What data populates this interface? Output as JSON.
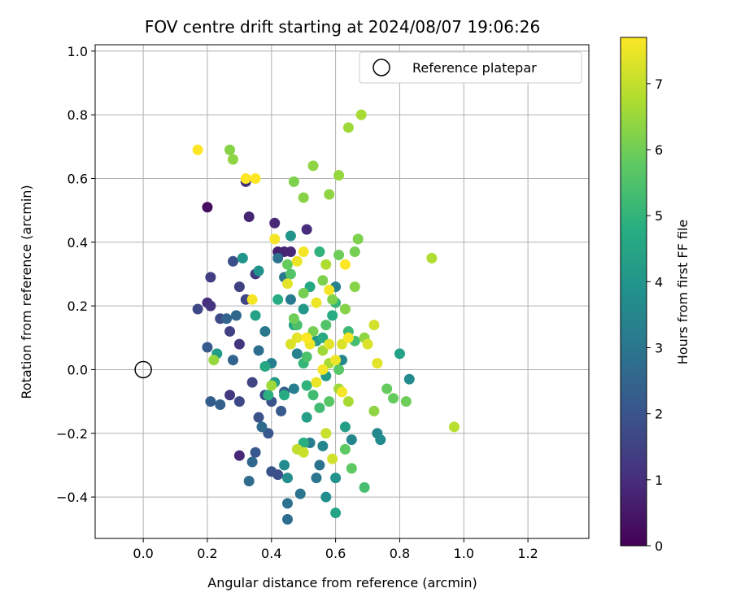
{
  "chart_data": {
    "type": "scatter",
    "title": "FOV centre drift starting at 2024/08/07 19:06:26",
    "xlabel": "Angular distance from reference (arcmin)",
    "ylabel": "Rotation from reference (arcmin)",
    "xlim": [
      -0.15,
      1.39
    ],
    "ylim": [
      -0.53,
      1.02
    ],
    "xticks": [
      "0.0",
      "0.2",
      "0.4",
      "0.6",
      "0.8",
      "1.0",
      "1.2"
    ],
    "xtick_values": [
      0.0,
      0.2,
      0.4,
      0.6,
      0.8,
      1.0,
      1.2
    ],
    "yticks": [
      "−0.4",
      "−0.2",
      "0.0",
      "0.2",
      "0.4",
      "0.6",
      "0.8",
      "1.0"
    ],
    "ytick_values": [
      -0.4,
      -0.2,
      0.0,
      0.2,
      0.4,
      0.6,
      0.8,
      1.0
    ],
    "grid": true,
    "legend": {
      "label": "Reference platepar",
      "placement": "top-right"
    },
    "reference_point": {
      "x": 0.0,
      "y": 0.0
    },
    "colorbar": {
      "label": "Hours from first FF file",
      "colormap": "viridis",
      "range": [
        0,
        7.7
      ],
      "ticks": [
        "0",
        "1",
        "2",
        "3",
        "4",
        "5",
        "6",
        "7"
      ],
      "tick_values": [
        0,
        1,
        2,
        3,
        4,
        5,
        6,
        7
      ]
    },
    "points": [
      {
        "x": 0.2,
        "y": 0.51,
        "h": 0.3
      },
      {
        "x": 0.33,
        "y": 0.48,
        "h": 0.8
      },
      {
        "x": 0.41,
        "y": 0.46,
        "h": 0.9
      },
      {
        "x": 0.51,
        "y": 0.44,
        "h": 1.0
      },
      {
        "x": 0.32,
        "y": 0.59,
        "h": 1.1
      },
      {
        "x": 0.46,
        "y": 0.37,
        "h": 0.9
      },
      {
        "x": 0.42,
        "y": 0.37,
        "h": 0.7
      },
      {
        "x": 0.44,
        "y": 0.37,
        "h": 0.8
      },
      {
        "x": 0.3,
        "y": -0.27,
        "h": 0.9
      },
      {
        "x": 0.2,
        "y": 0.21,
        "h": 1.0
      },
      {
        "x": 0.21,
        "y": 0.29,
        "h": 1.4
      },
      {
        "x": 0.21,
        "y": 0.2,
        "h": 1.2
      },
      {
        "x": 0.35,
        "y": 0.3,
        "h": 1.3
      },
      {
        "x": 0.3,
        "y": 0.08,
        "h": 1.2
      },
      {
        "x": 0.27,
        "y": -0.08,
        "h": 1.3
      },
      {
        "x": 0.27,
        "y": 0.12,
        "h": 1.5
      },
      {
        "x": 0.3,
        "y": 0.26,
        "h": 1.5
      },
      {
        "x": 0.32,
        "y": 0.22,
        "h": 1.6
      },
      {
        "x": 0.17,
        "y": 0.19,
        "h": 1.7
      },
      {
        "x": 0.24,
        "y": 0.16,
        "h": 1.8
      },
      {
        "x": 0.3,
        "y": -0.1,
        "h": 1.7
      },
      {
        "x": 0.34,
        "y": -0.04,
        "h": 1.6
      },
      {
        "x": 0.38,
        "y": -0.08,
        "h": 1.8
      },
      {
        "x": 0.28,
        "y": 0.34,
        "h": 1.9
      },
      {
        "x": 0.36,
        "y": -0.15,
        "h": 2.0
      },
      {
        "x": 0.4,
        "y": -0.1,
        "h": 2.0
      },
      {
        "x": 0.35,
        "y": -0.26,
        "h": 2.1
      },
      {
        "x": 0.39,
        "y": -0.2,
        "h": 2.1
      },
      {
        "x": 0.4,
        "y": -0.32,
        "h": 2.0
      },
      {
        "x": 0.42,
        "y": -0.33,
        "h": 1.9
      },
      {
        "x": 0.43,
        "y": -0.13,
        "h": 2.2
      },
      {
        "x": 0.44,
        "y": -0.07,
        "h": 2.3
      },
      {
        "x": 0.2,
        "y": 0.07,
        "h": 2.2
      },
      {
        "x": 0.21,
        "y": -0.1,
        "h": 2.3
      },
      {
        "x": 0.24,
        "y": -0.11,
        "h": 2.4
      },
      {
        "x": 0.26,
        "y": 0.16,
        "h": 2.5
      },
      {
        "x": 0.28,
        "y": 0.03,
        "h": 2.5
      },
      {
        "x": 0.29,
        "y": 0.17,
        "h": 2.6
      },
      {
        "x": 0.33,
        "y": -0.35,
        "h": 2.7
      },
      {
        "x": 0.34,
        "y": -0.29,
        "h": 2.6
      },
      {
        "x": 0.36,
        "y": 0.06,
        "h": 2.8
      },
      {
        "x": 0.37,
        "y": -0.18,
        "h": 2.7
      },
      {
        "x": 0.45,
        "y": -0.47,
        "h": 2.8
      },
      {
        "x": 0.45,
        "y": -0.42,
        "h": 2.9
      },
      {
        "x": 0.49,
        "y": -0.39,
        "h": 3.0
      },
      {
        "x": 0.54,
        "y": -0.34,
        "h": 3.0
      },
      {
        "x": 0.55,
        "y": -0.3,
        "h": 2.9
      },
      {
        "x": 0.42,
        "y": 0.35,
        "h": 2.9
      },
      {
        "x": 0.44,
        "y": 0.29,
        "h": 3.1
      },
      {
        "x": 0.46,
        "y": 0.22,
        "h": 3.2
      },
      {
        "x": 0.38,
        "y": 0.12,
        "h": 3.1
      },
      {
        "x": 0.4,
        "y": 0.02,
        "h": 3.3
      },
      {
        "x": 0.47,
        "y": -0.06,
        "h": 3.3
      },
      {
        "x": 0.48,
        "y": 0.05,
        "h": 3.4
      },
      {
        "x": 0.52,
        "y": -0.23,
        "h": 3.3
      },
      {
        "x": 0.56,
        "y": -0.24,
        "h": 3.5
      },
      {
        "x": 0.6,
        "y": 0.26,
        "h": 3.4
      },
      {
        "x": 0.62,
        "y": 0.03,
        "h": 3.6
      },
      {
        "x": 0.65,
        "y": -0.22,
        "h": 3.5
      },
      {
        "x": 0.73,
        "y": -0.2,
        "h": 3.6
      },
      {
        "x": 0.74,
        "y": -0.22,
        "h": 3.7
      },
      {
        "x": 0.83,
        "y": -0.03,
        "h": 3.7
      },
      {
        "x": 0.44,
        "y": -0.3,
        "h": 3.7
      },
      {
        "x": 0.45,
        "y": -0.34,
        "h": 3.8
      },
      {
        "x": 0.57,
        "y": -0.4,
        "h": 3.8
      },
      {
        "x": 0.6,
        "y": -0.34,
        "h": 3.9
      },
      {
        "x": 0.36,
        "y": 0.31,
        "h": 3.9
      },
      {
        "x": 0.31,
        "y": 0.35,
        "h": 4.0
      },
      {
        "x": 0.46,
        "y": 0.42,
        "h": 4.0
      },
      {
        "x": 0.5,
        "y": 0.19,
        "h": 4.1
      },
      {
        "x": 0.54,
        "y": 0.09,
        "h": 4.1
      },
      {
        "x": 0.57,
        "y": -0.02,
        "h": 4.2
      },
      {
        "x": 0.41,
        "y": -0.04,
        "h": 4.2
      },
      {
        "x": 0.51,
        "y": -0.15,
        "h": 4.3
      },
      {
        "x": 0.63,
        "y": -0.18,
        "h": 4.3
      },
      {
        "x": 0.8,
        "y": 0.05,
        "h": 4.4
      },
      {
        "x": 0.6,
        "y": -0.45,
        "h": 4.5
      },
      {
        "x": 0.35,
        "y": 0.17,
        "h": 4.4
      },
      {
        "x": 0.47,
        "y": 0.14,
        "h": 4.5
      },
      {
        "x": 0.52,
        "y": 0.26,
        "h": 4.6
      },
      {
        "x": 0.38,
        "y": 0.01,
        "h": 4.6
      },
      {
        "x": 0.56,
        "y": 0.1,
        "h": 4.7
      },
      {
        "x": 0.59,
        "y": 0.17,
        "h": 4.8
      },
      {
        "x": 0.44,
        "y": -0.08,
        "h": 4.7
      },
      {
        "x": 0.42,
        "y": 0.22,
        "h": 4.8
      },
      {
        "x": 0.5,
        "y": -0.23,
        "h": 4.9
      },
      {
        "x": 0.23,
        "y": 0.05,
        "h": 4.2
      },
      {
        "x": 0.39,
        "y": -0.08,
        "h": 4.9
      },
      {
        "x": 0.51,
        "y": -0.05,
        "h": 5.0
      },
      {
        "x": 0.55,
        "y": 0.37,
        "h": 5.0
      },
      {
        "x": 0.6,
        "y": 0.21,
        "h": 5.1
      },
      {
        "x": 0.64,
        "y": 0.12,
        "h": 5.2
      },
      {
        "x": 0.5,
        "y": 0.02,
        "h": 5.1
      },
      {
        "x": 0.53,
        "y": -0.08,
        "h": 5.3
      },
      {
        "x": 0.55,
        "y": -0.12,
        "h": 5.3
      },
      {
        "x": 0.66,
        "y": 0.09,
        "h": 5.4
      },
      {
        "x": 0.69,
        "y": -0.37,
        "h": 5.4
      },
      {
        "x": 0.48,
        "y": 0.14,
        "h": 5.5
      },
      {
        "x": 0.46,
        "y": 0.3,
        "h": 5.6
      },
      {
        "x": 0.51,
        "y": 0.04,
        "h": 5.5
      },
      {
        "x": 0.57,
        "y": 0.14,
        "h": 5.6
      },
      {
        "x": 0.58,
        "y": -0.1,
        "h": 5.7
      },
      {
        "x": 0.61,
        "y": 0.0,
        "h": 5.7
      },
      {
        "x": 0.63,
        "y": -0.25,
        "h": 5.8
      },
      {
        "x": 0.65,
        "y": -0.31,
        "h": 5.8
      },
      {
        "x": 0.76,
        "y": -0.06,
        "h": 5.9
      },
      {
        "x": 0.78,
        "y": -0.09,
        "h": 5.9
      },
      {
        "x": 0.82,
        "y": -0.1,
        "h": 6.0
      },
      {
        "x": 0.45,
        "y": 0.33,
        "h": 5.9
      },
      {
        "x": 0.47,
        "y": 0.16,
        "h": 6.0
      },
      {
        "x": 0.5,
        "y": 0.24,
        "h": 6.1
      },
      {
        "x": 0.53,
        "y": 0.12,
        "h": 6.1
      },
      {
        "x": 0.56,
        "y": 0.28,
        "h": 6.2
      },
      {
        "x": 0.59,
        "y": 0.22,
        "h": 6.2
      },
      {
        "x": 0.63,
        "y": 0.19,
        "h": 6.3
      },
      {
        "x": 0.66,
        "y": 0.26,
        "h": 6.3
      },
      {
        "x": 0.69,
        "y": 0.1,
        "h": 6.4
      },
      {
        "x": 0.72,
        "y": -0.13,
        "h": 6.4
      },
      {
        "x": 0.61,
        "y": 0.36,
        "h": 6.0
      },
      {
        "x": 0.66,
        "y": 0.37,
        "h": 6.1
      },
      {
        "x": 0.67,
        "y": 0.41,
        "h": 6.2
      },
      {
        "x": 0.47,
        "y": 0.59,
        "h": 6.2
      },
      {
        "x": 0.5,
        "y": 0.54,
        "h": 6.3
      },
      {
        "x": 0.53,
        "y": 0.64,
        "h": 6.4
      },
      {
        "x": 0.58,
        "y": 0.55,
        "h": 6.4
      },
      {
        "x": 0.61,
        "y": 0.61,
        "h": 6.5
      },
      {
        "x": 0.27,
        "y": 0.69,
        "h": 6.3
      },
      {
        "x": 0.28,
        "y": 0.66,
        "h": 6.4
      },
      {
        "x": 0.64,
        "y": 0.76,
        "h": 6.6
      },
      {
        "x": 0.68,
        "y": 0.8,
        "h": 6.7
      },
      {
        "x": 0.9,
        "y": 0.35,
        "h": 6.8
      },
      {
        "x": 0.97,
        "y": -0.18,
        "h": 6.9
      },
      {
        "x": 0.56,
        "y": 0.06,
        "h": 6.6
      },
      {
        "x": 0.58,
        "y": 0.02,
        "h": 6.7
      },
      {
        "x": 0.61,
        "y": -0.06,
        "h": 6.6
      },
      {
        "x": 0.64,
        "y": -0.1,
        "h": 6.7
      },
      {
        "x": 0.57,
        "y": 0.33,
        "h": 6.8
      },
      {
        "x": 0.48,
        "y": -0.25,
        "h": 7.0
      },
      {
        "x": 0.5,
        "y": -0.26,
        "h": 7.1
      },
      {
        "x": 0.57,
        "y": -0.2,
        "h": 7.1
      },
      {
        "x": 0.59,
        "y": -0.28,
        "h": 7.2
      },
      {
        "x": 0.72,
        "y": 0.14,
        "h": 7.2
      },
      {
        "x": 0.7,
        "y": 0.08,
        "h": 7.3
      },
      {
        "x": 0.73,
        "y": 0.02,
        "h": 7.4
      },
      {
        "x": 0.22,
        "y": 0.03,
        "h": 6.5
      },
      {
        "x": 0.4,
        "y": -0.05,
        "h": 6.6
      },
      {
        "x": 0.46,
        "y": 0.08,
        "h": 7.3
      },
      {
        "x": 0.48,
        "y": 0.1,
        "h": 7.4
      },
      {
        "x": 0.52,
        "y": 0.08,
        "h": 7.5
      },
      {
        "x": 0.54,
        "y": -0.04,
        "h": 7.5
      },
      {
        "x": 0.56,
        "y": 0.0,
        "h": 7.6
      },
      {
        "x": 0.58,
        "y": 0.08,
        "h": 7.4
      },
      {
        "x": 0.6,
        "y": 0.03,
        "h": 7.5
      },
      {
        "x": 0.62,
        "y": 0.08,
        "h": 7.3
      },
      {
        "x": 0.64,
        "y": 0.1,
        "h": 7.6
      },
      {
        "x": 0.62,
        "y": -0.07,
        "h": 7.6
      },
      {
        "x": 0.48,
        "y": 0.34,
        "h": 7.5
      },
      {
        "x": 0.5,
        "y": 0.37,
        "h": 7.6
      },
      {
        "x": 0.54,
        "y": 0.21,
        "h": 7.5
      },
      {
        "x": 0.45,
        "y": 0.27,
        "h": 7.4
      },
      {
        "x": 0.41,
        "y": 0.41,
        "h": 7.6
      },
      {
        "x": 0.34,
        "y": 0.22,
        "h": 7.6
      },
      {
        "x": 0.32,
        "y": 0.6,
        "h": 7.7
      },
      {
        "x": 0.35,
        "y": 0.6,
        "h": 7.7
      },
      {
        "x": 0.17,
        "y": 0.69,
        "h": 7.7
      },
      {
        "x": 0.63,
        "y": 0.33,
        "h": 7.7
      },
      {
        "x": 0.58,
        "y": 0.25,
        "h": 7.6
      },
      {
        "x": 0.51,
        "y": 0.1,
        "h": 7.7
      }
    ]
  }
}
